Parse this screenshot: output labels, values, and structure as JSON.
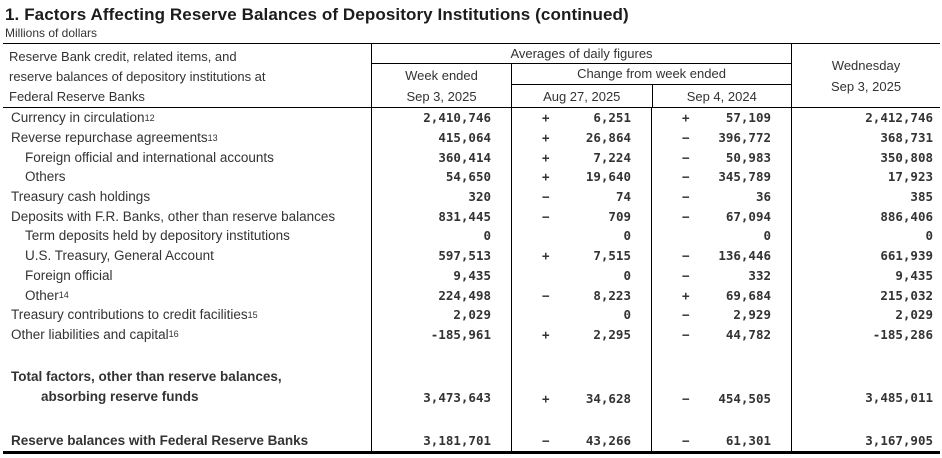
{
  "page": {
    "title": "1. Factors Affecting Reserve Balances of Depository Institutions (continued)",
    "subtitle": "Millions of dollars"
  },
  "table": {
    "stub_header_line1": "Reserve Bank credit, related items, and",
    "stub_header_line2": "reserve balances of depository institutions at",
    "stub_header_line3": "Federal Reserve Banks",
    "averages_title": "Averages of daily figures",
    "week_ended_label": "Week ended",
    "week_ended_date": "Sep 3, 2025",
    "change_title": "Change from week ended",
    "change_col1_date": "Aug 27, 2025",
    "change_col2_date": "Sep 4, 2024",
    "wednesday_label": "Wednesday",
    "wednesday_date": "Sep 3, 2025",
    "rows": [
      {
        "label": "Currency in circulation",
        "sup": "12",
        "week": "2,410,746",
        "chg1_sign": "+",
        "chg1": "6,251",
        "chg2_sign": "+",
        "chg2": "57,109",
        "wed": "2,412,746"
      },
      {
        "label": "Reverse repurchase agreements",
        "sup": "13",
        "week": "415,064",
        "chg1_sign": "+",
        "chg1": "26,864",
        "chg2_sign": "−",
        "chg2": "396,772",
        "wed": "368,731"
      },
      {
        "label": "Foreign official and international accounts",
        "week": "360,414",
        "chg1_sign": "+",
        "chg1": "7,224",
        "chg2_sign": "−",
        "chg2": "50,983",
        "wed": "350,808"
      },
      {
        "label": "Others",
        "week": "54,650",
        "chg1_sign": "+",
        "chg1": "19,640",
        "chg2_sign": "−",
        "chg2": "345,789",
        "wed": "17,923"
      },
      {
        "label": "Treasury cash holdings",
        "week": "320",
        "chg1_sign": "−",
        "chg1": "74",
        "chg2_sign": "−",
        "chg2": "36",
        "wed": "385"
      },
      {
        "label": "Deposits with F.R. Banks, other than reserve balances",
        "week": "831,445",
        "chg1_sign": "−",
        "chg1": "709",
        "chg2_sign": "−",
        "chg2": "67,094",
        "wed": "886,406"
      },
      {
        "label": "Term deposits held by depository institutions",
        "week": "0",
        "chg1_sign": "",
        "chg1": "0",
        "chg2_sign": "",
        "chg2": "0",
        "wed": "0"
      },
      {
        "label": "U.S. Treasury, General Account",
        "week": "597,513",
        "chg1_sign": "+",
        "chg1": "7,515",
        "chg2_sign": "−",
        "chg2": "136,446",
        "wed": "661,939"
      },
      {
        "label": "Foreign official",
        "week": "9,435",
        "chg1_sign": "",
        "chg1": "0",
        "chg2_sign": "−",
        "chg2": "332",
        "wed": "9,435"
      },
      {
        "label": "Other",
        "sup": "14",
        "week": "224,498",
        "chg1_sign": "−",
        "chg1": "8,223",
        "chg2_sign": "+",
        "chg2": "69,684",
        "wed": "215,032"
      },
      {
        "label": "Treasury contributions to credit facilities",
        "sup": "15",
        "week": "2,029",
        "chg1_sign": "",
        "chg1": "0",
        "chg2_sign": "−",
        "chg2": "2,929",
        "wed": "2,029"
      },
      {
        "label": "Other liabilities and capital",
        "sup": "16",
        "week": "-185,961",
        "chg1_sign": "+",
        "chg1": "2,295",
        "chg2_sign": "−",
        "chg2": "44,782",
        "wed": "-185,286"
      }
    ],
    "total_row": {
      "label_line1": "Total factors, other than reserve balances,",
      "label_line2": "absorbing reserve funds",
      "week": "3,473,643",
      "chg1_sign": "+",
      "chg1": "34,628",
      "chg2_sign": "−",
      "chg2": "454,505",
      "wed": "3,485,011"
    },
    "reserve_row": {
      "label": "Reserve balances with Federal Reserve Banks",
      "week": "3,181,701",
      "chg1_sign": "−",
      "chg1": "43,266",
      "chg2_sign": "−",
      "chg2": "61,301",
      "wed": "3,167,905"
    }
  }
}
